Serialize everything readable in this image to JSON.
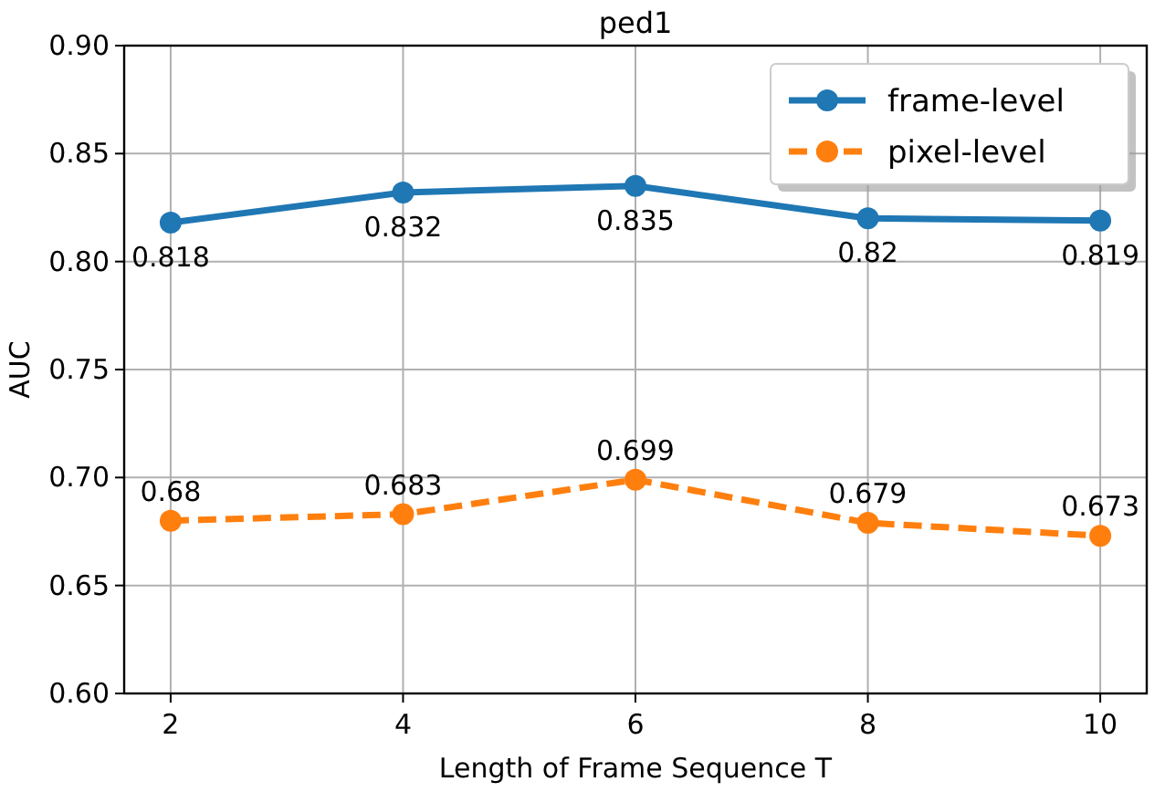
{
  "chart_data": {
    "type": "line",
    "title": "ped1",
    "xlabel": "Length of Frame Sequence T",
    "ylabel": "AUC",
    "x": [
      2,
      4,
      6,
      8,
      10
    ],
    "xlim": [
      1.6,
      10.4
    ],
    "xticks": [
      2,
      4,
      6,
      8,
      10
    ],
    "ylim": [
      0.6,
      0.9
    ],
    "yticks": [
      {
        "value": 0.6,
        "label": "0.60"
      },
      {
        "value": 0.65,
        "label": "0.65"
      },
      {
        "value": 0.7,
        "label": "0.70"
      },
      {
        "value": 0.75,
        "label": "0.75"
      },
      {
        "value": 0.8,
        "label": "0.80"
      },
      {
        "value": 0.85,
        "label": "0.85"
      },
      {
        "value": 0.9,
        "label": "0.90"
      }
    ],
    "series": [
      {
        "name": "frame-level",
        "color": "#1f77b4",
        "values": [
          0.818,
          0.832,
          0.835,
          0.82,
          0.819
        ],
        "line_style": "solid"
      },
      {
        "name": "pixel-level",
        "color": "#ff7f0e",
        "values": [
          0.68,
          0.683,
          0.699,
          0.679,
          0.673
        ],
        "line_style": "dashed"
      }
    ],
    "marker": "circle",
    "grid": true,
    "legend": "top right",
    "data_labels": true
  }
}
